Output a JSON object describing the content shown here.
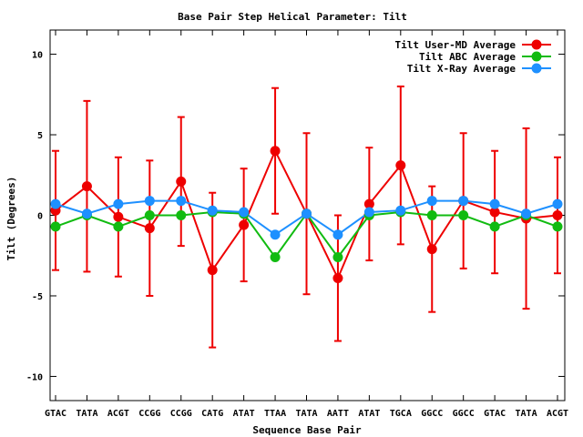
{
  "chart_data": {
    "type": "line",
    "title": "Base Pair Step Helical Parameter: Tilt",
    "xlabel": "Sequence Base Pair",
    "ylabel": "Tilt (Degrees)",
    "ylim": [
      -11.5,
      11.5
    ],
    "yticks": [
      10,
      5,
      0,
      -5,
      -10
    ],
    "grid": false,
    "legend_position": "top-right",
    "categories": [
      "GTAC",
      "TATA",
      "ACGT",
      "CCGG",
      "CCGG",
      "CATG",
      "ATAT",
      "TTAA",
      "TATA",
      "AATT",
      "ATAT",
      "TGCA",
      "GGCC",
      "GGCC",
      "GTAC",
      "TATA",
      "ACGT"
    ],
    "series": [
      {
        "name": "Tilt User-MD Average",
        "color": "#ee0000",
        "values": [
          0.3,
          1.8,
          -0.1,
          -0.8,
          2.1,
          -3.4,
          -0.6,
          4.0,
          0.1,
          -3.9,
          0.7,
          3.1,
          -2.1,
          0.9,
          0.2,
          -0.2,
          0.0
        ],
        "error": [
          3.7,
          5.3,
          3.7,
          4.2,
          4.0,
          4.8,
          3.5,
          3.9,
          5.0,
          3.9,
          3.5,
          4.9,
          3.9,
          4.2,
          3.8,
          5.6,
          3.6
        ]
      },
      {
        "name": "Tilt ABC Average",
        "color": "#11bb11",
        "values": [
          -0.7,
          0.0,
          -0.7,
          0.0,
          0.0,
          0.2,
          0.1,
          -2.6,
          0.1,
          -2.6,
          0.0,
          0.2,
          0.0,
          0.0,
          -0.7,
          0.0,
          -0.7
        ]
      },
      {
        "name": "Tilt X-Ray Average",
        "color": "#1e90ff",
        "values": [
          0.7,
          0.1,
          0.7,
          0.9,
          0.9,
          0.3,
          0.2,
          -1.2,
          0.1,
          -1.2,
          0.2,
          0.3,
          0.9,
          0.9,
          0.7,
          0.1,
          0.7
        ]
      }
    ]
  }
}
